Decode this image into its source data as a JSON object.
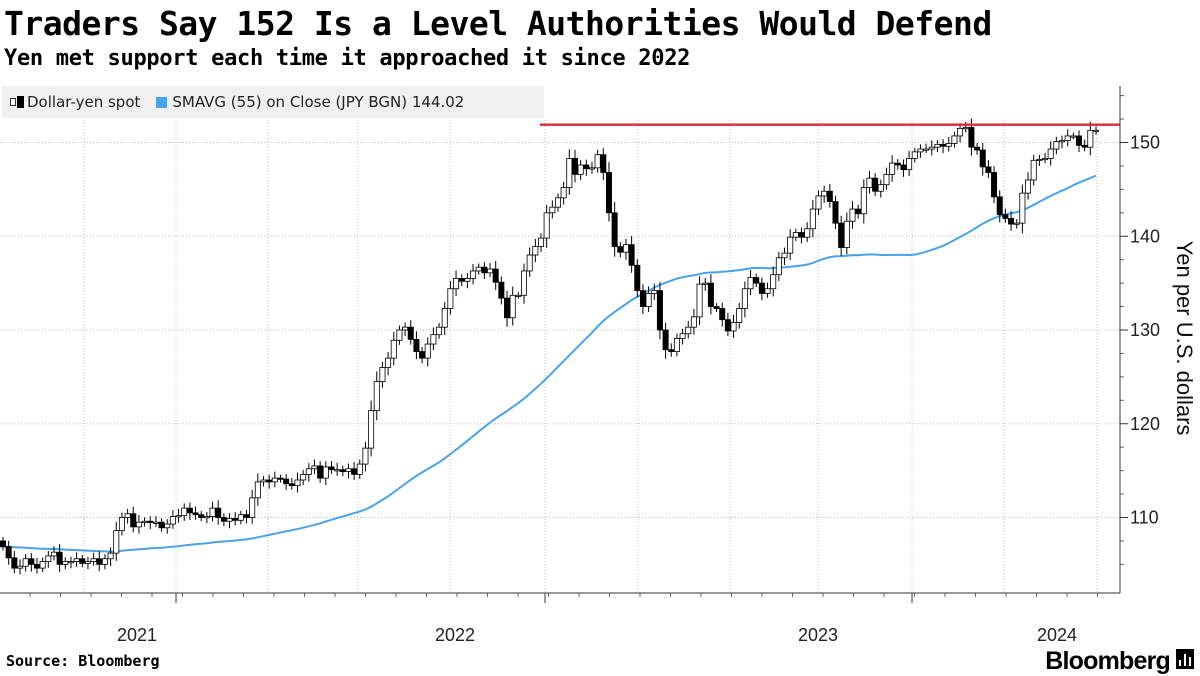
{
  "header": {
    "title": "Traders Say 152 Is a Level Authorities Would Defend",
    "subtitle": "Yen met support each time it approached it since 2022"
  },
  "legend": {
    "spot_label": "Dollar-yen spot",
    "sma_label": "SMAVG (55)  on Close (JPY BGN) 144.02"
  },
  "footer": {
    "source": "Source: Bloomberg",
    "brand": "Bloomberg"
  },
  "colors": {
    "up_candle": "#ffffff",
    "down_candle": "#000000",
    "sma": "#4aa3ea",
    "level_line": "#e0283c",
    "grid": "#bdbdbd"
  },
  "chart_data": {
    "type": "candlestick",
    "title": "Traders Say 152 Is a Level Authorities Would Defend",
    "ylabel": "Yen per U.S. dollars",
    "ylim": [
      102.5,
      156.5
    ],
    "yticks": [
      110,
      120,
      130,
      140,
      150
    ],
    "x_year_labels": [
      "2021",
      "2022",
      "2023",
      "2024"
    ],
    "horizontal_line": {
      "label": "152",
      "value": 151.9
    },
    "candles": {
      "frequency": "weekly",
      "start": "2020-10",
      "close": [
        106.9,
        105.7,
        104.6,
        104.8,
        105.6,
        105.0,
        104.6,
        105.3,
        105.9,
        106.3,
        105.0,
        105.3,
        105.3,
        105.6,
        105.1,
        105.3,
        105.6,
        105.0,
        105.6,
        106.2,
        108.6,
        110.0,
        110.4,
        109.0,
        109.5,
        109.6,
        109.5,
        109.5,
        108.9,
        109.3,
        110.1,
        110.2,
        111.0,
        110.5,
        110.3,
        110.0,
        110.1,
        111.0,
        110.0,
        109.6,
        109.9,
        109.7,
        110.3,
        110.0,
        112.1,
        113.8,
        114.0,
        113.8,
        114.2,
        114.1,
        113.6,
        113.4,
        114.0,
        114.6,
        115.2,
        115.5,
        114.2,
        115.4,
        115.1,
        115.1,
        114.9,
        115.2,
        114.6,
        115.7,
        117.4,
        121.4,
        124.5,
        126.0,
        127.0,
        128.9,
        130.0,
        130.3,
        129.0,
        127.7,
        127.0,
        128.5,
        129.5,
        130.3,
        132.3,
        134.4,
        135.5,
        135.2,
        135.5,
        136.3,
        136.7,
        136.1,
        136.5,
        135.1,
        133.4,
        131.3,
        133.7,
        133.7,
        136.3,
        138.0,
        138.9,
        139.8,
        142.5,
        143.1,
        144.1,
        145.2,
        148.3,
        146.6,
        147.6,
        147.2,
        147.3,
        148.7,
        146.8,
        142.5,
        138.9,
        138.3,
        139.1,
        136.9,
        134.2,
        132.5,
        133.9,
        134.2,
        130.0,
        127.9,
        127.7,
        129.1,
        129.6,
        130.3,
        131.4,
        134.9,
        135.0,
        132.5,
        132.3,
        131.1,
        129.9,
        130.8,
        132.3,
        134.4,
        135.6,
        135.0,
        133.9,
        134.4,
        135.9,
        137.7,
        138.2,
        139.9,
        140.4,
        139.9,
        140.8,
        142.9,
        144.3,
        144.8,
        143.7,
        141.4,
        138.8,
        141.6,
        142.9,
        142.4,
        145.2,
        146.2,
        144.8,
        145.5,
        146.6,
        147.8,
        147.6,
        147.1,
        148.3,
        149.0,
        149.3,
        149.3,
        149.5,
        149.8,
        149.6,
        149.9,
        150.7,
        151.5,
        151.6,
        149.5,
        149.2,
        147.4,
        146.8,
        144.2,
        142.3,
        141.9,
        141.3,
        141.4,
        144.6,
        146.0,
        148.1,
        148.2,
        148.3,
        149.3,
        150.1,
        150.2,
        150.7,
        150.7,
        149.7,
        149.5,
        151.3,
        151.3
      ]
    },
    "sma": {
      "label": "SMAVG (55) on Close (JPY BGN)",
      "last_value": 144.02
    }
  }
}
